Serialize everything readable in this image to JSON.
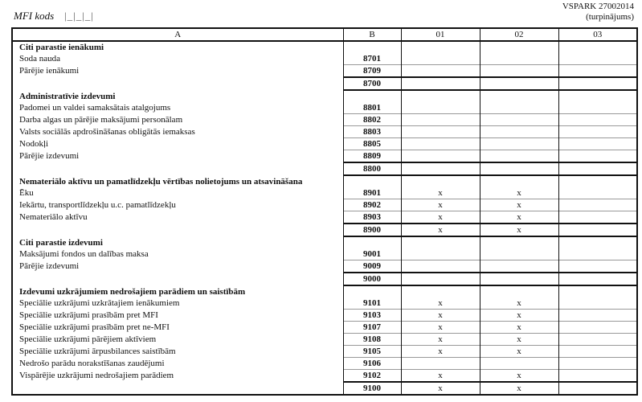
{
  "header": {
    "mfi_label": "MFI kods",
    "mfi_boxes": "|_|_|_|",
    "form_code": "VSPARK 27002014",
    "continuation": "(turpinājums)"
  },
  "columns": [
    "A",
    "B",
    "01",
    "02",
    "03"
  ],
  "sections": [
    {
      "title": "Citi parastie ienākumi",
      "rows": [
        {
          "label": "Soda nauda",
          "code": "8701",
          "c01": "",
          "c02": ""
        },
        {
          "label": "Pārējie ienākumi",
          "code": "8709",
          "c01": "",
          "c02": ""
        }
      ],
      "total": {
        "code": "8700",
        "c01": "",
        "c02": ""
      }
    },
    {
      "title": "Administratīvie izdevumi",
      "rows": [
        {
          "label": "Padomei un valdei samaksātais atalgojums",
          "code": "8801",
          "c01": "",
          "c02": ""
        },
        {
          "label": "Darba algas un pārējie maksājumi personālam",
          "code": "8802",
          "c01": "",
          "c02": ""
        },
        {
          "label": "Valsts sociālās apdrošināšanas obligātās iemaksas",
          "code": "8803",
          "c01": "",
          "c02": ""
        },
        {
          "label": "Nodokļi",
          "code": "8805",
          "c01": "",
          "c02": ""
        },
        {
          "label": "Pārējie izdevumi",
          "code": "8809",
          "c01": "",
          "c02": ""
        }
      ],
      "total": {
        "code": "8800",
        "c01": "",
        "c02": ""
      }
    },
    {
      "title": "Nemateriālo aktīvu un pamatlīdzekļu vērtības nolietojums un atsavināšana",
      "rows": [
        {
          "label": "Ēku",
          "code": "8901",
          "c01": "x",
          "c02": "x"
        },
        {
          "label": "Iekārtu, transportlīdzekļu u.c. pamatlīdzekļu",
          "code": "8902",
          "c01": "x",
          "c02": "x"
        },
        {
          "label": "Nemateriālo aktīvu",
          "code": "8903",
          "c01": "x",
          "c02": "x"
        }
      ],
      "total": {
        "code": "8900",
        "c01": "x",
        "c02": "x"
      }
    },
    {
      "title": "Citi parastie izdevumi",
      "rows": [
        {
          "label": "Maksājumi fondos un dalības maksa",
          "code": "9001",
          "c01": "",
          "c02": ""
        },
        {
          "label": "Pārējie izdevumi",
          "code": "9009",
          "c01": "",
          "c02": ""
        }
      ],
      "total": {
        "code": "9000",
        "c01": "",
        "c02": ""
      }
    },
    {
      "title": "Izdevumi uzkrājumiem nedrošajiem parādiem un saistībām",
      "rows": [
        {
          "label": "Speciālie uzkrājumi uzkrātajiem ienākumiem",
          "code": "9101",
          "c01": "x",
          "c02": "x"
        },
        {
          "label": "Speciālie uzkrājumi prasībām pret MFI",
          "code": "9103",
          "c01": "x",
          "c02": "x"
        },
        {
          "label": "Speciālie uzkrājumi prasībām pret ne-MFI",
          "code": "9107",
          "c01": "x",
          "c02": "x"
        },
        {
          "label": "Speciālie uzkrājumi pārējiem aktīviem",
          "code": "9108",
          "c01": "x",
          "c02": "x"
        },
        {
          "label": "Speciālie uzkrājumi ārpusbilances saistībām",
          "code": "9105",
          "c01": "x",
          "c02": "x"
        },
        {
          "label": "Nedrošo parādu norakstīšanas zaudējumi",
          "code": "9106",
          "c01": "",
          "c02": ""
        },
        {
          "label": "Vispārējie uzkrājumi nedrošajiem parādiem",
          "code": "9102",
          "c01": "x",
          "c02": "x"
        }
      ],
      "total": {
        "code": "9100",
        "c01": "x",
        "c02": "x"
      }
    }
  ]
}
